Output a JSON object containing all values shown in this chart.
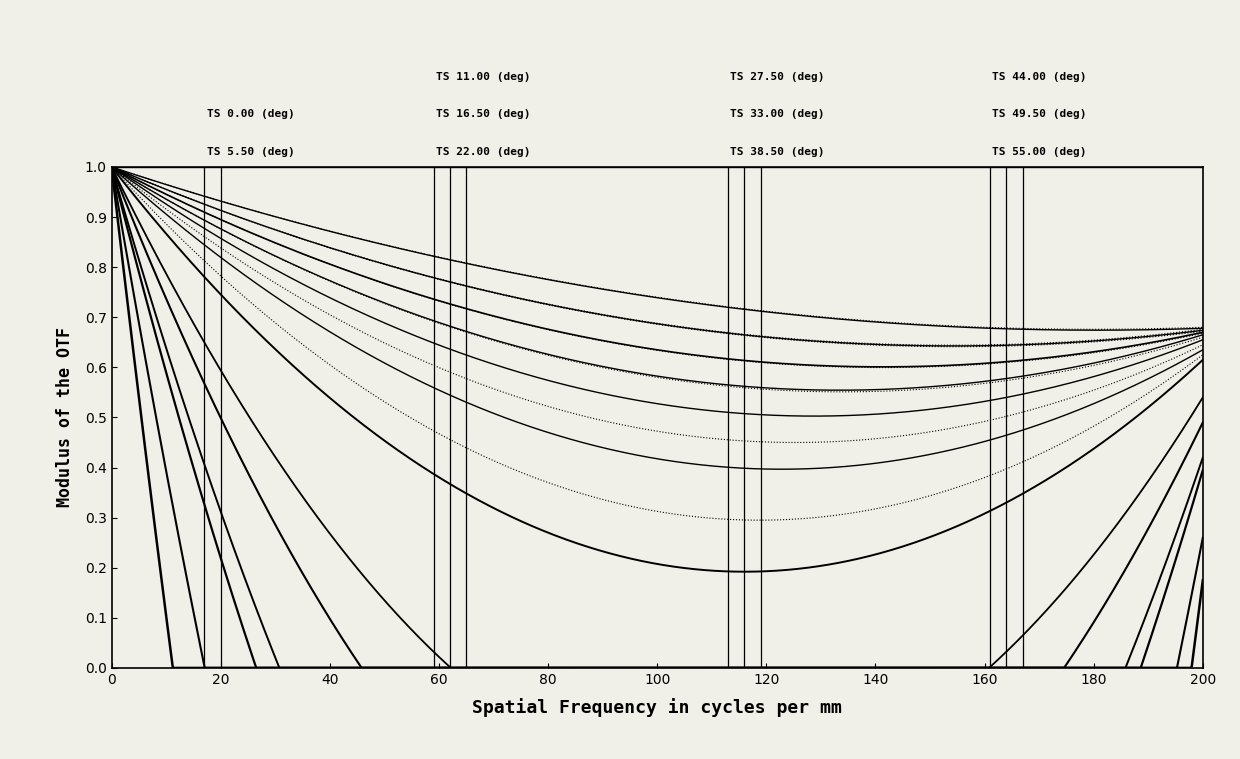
{
  "xlabel": "Spatial Frequency in cycles per mm",
  "ylabel": "Modulus of the OTF",
  "xlim": [
    0,
    200
  ],
  "ylim": [
    0.0,
    1.0
  ],
  "xticks": [
    0,
    20,
    40,
    60,
    80,
    100,
    120,
    140,
    160,
    180,
    200
  ],
  "yticks": [
    0.0,
    0.1,
    0.2,
    0.3,
    0.4,
    0.5,
    0.6,
    0.7,
    0.8,
    0.9,
    1.0
  ],
  "background_color": "#f0f0e8",
  "ts_labels": [
    "TS 0.00 (deg)",
    "TS 5.50 (deg)",
    "TS 11.00 (deg)",
    "TS 16.50 (deg)",
    "TS 22.00 (deg)",
    "TS 27.50 (deg)",
    "TS 33.00 (deg)",
    "TS 38.50 (deg)",
    "TS 44.00 (deg)",
    "TS 49.50 (deg)",
    "TS 55.00 (deg)"
  ],
  "vlines": [
    17,
    20,
    59,
    62,
    65,
    113,
    116,
    119,
    161,
    164,
    167
  ],
  "label_groups": [
    {
      "x": 17,
      "indices": [
        0,
        1
      ],
      "rows": 2
    },
    {
      "x": 59,
      "indices": [
        2,
        3,
        4
      ],
      "rows": 3
    },
    {
      "x": 113,
      "indices": [
        5,
        6,
        7
      ],
      "rows": 3
    },
    {
      "x": 161,
      "indices": [
        8,
        9,
        10
      ],
      "rows": 3
    }
  ],
  "curves": [
    {
      "end_val": 0.615,
      "concavity": 0.012,
      "ls": "solid",
      "lw": 1.4
    },
    {
      "end_val": 0.625,
      "concavity": 0.01,
      "ls": "dotted",
      "lw": 0.8
    },
    {
      "end_val": 0.635,
      "concavity": 0.008,
      "ls": "solid",
      "lw": 1.0
    },
    {
      "end_val": 0.645,
      "concavity": 0.007,
      "ls": "dotted",
      "lw": 0.8
    },
    {
      "end_val": 0.655,
      "concavity": 0.006,
      "ls": "solid",
      "lw": 1.0
    },
    {
      "end_val": 0.66,
      "concavity": 0.005,
      "ls": "dotted",
      "lw": 0.8
    },
    {
      "end_val": 0.665,
      "concavity": 0.005,
      "ls": "solid",
      "lw": 1.0
    },
    {
      "end_val": 0.668,
      "concavity": 0.004,
      "ls": "dotted",
      "lw": 0.8
    },
    {
      "end_val": 0.67,
      "concavity": 0.004,
      "ls": "solid",
      "lw": 1.2
    },
    {
      "end_val": 0.672,
      "concavity": 0.003,
      "ls": "dotted",
      "lw": 0.8
    },
    {
      "end_val": 0.674,
      "concavity": 0.003,
      "ls": "solid",
      "lw": 1.0
    },
    {
      "end_val": 0.676,
      "concavity": 0.003,
      "ls": "dotted",
      "lw": 0.8
    },
    {
      "end_val": 0.678,
      "concavity": 0.002,
      "ls": "solid",
      "lw": 1.0
    },
    {
      "end_val": 0.68,
      "concavity": 0.002,
      "ls": "dotted",
      "lw": 0.8
    },
    {
      "end_val": 0.54,
      "concavity": 0.02,
      "ls": "solid",
      "lw": 1.3
    },
    {
      "end_val": 0.49,
      "concavity": 0.025,
      "ls": "solid",
      "lw": 1.5
    },
    {
      "end_val": 0.42,
      "concavity": 0.035,
      "ls": "solid",
      "lw": 1.4
    },
    {
      "end_val": 0.395,
      "concavity": 0.04,
      "ls": "solid",
      "lw": 1.6
    },
    {
      "end_val": 0.26,
      "concavity": 0.06,
      "ls": "solid",
      "lw": 1.5
    },
    {
      "end_val": 0.175,
      "concavity": 0.09,
      "ls": "solid",
      "lw": 1.8
    }
  ]
}
